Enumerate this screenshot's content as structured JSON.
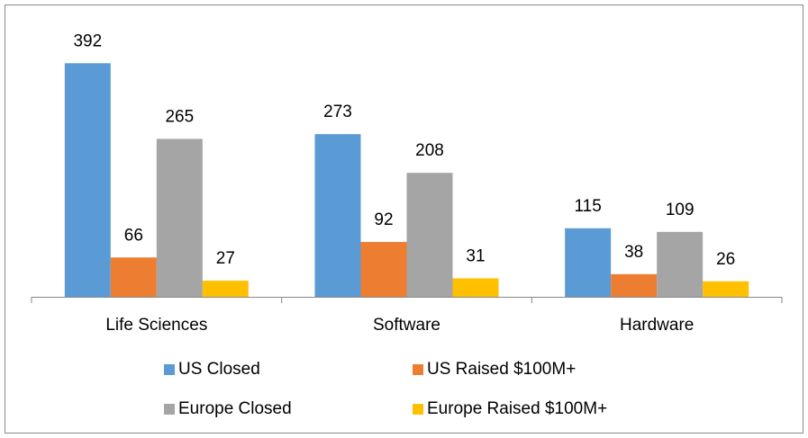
{
  "chart_data": {
    "type": "bar",
    "categories": [
      "Life Sciences",
      "Software",
      "Hardware"
    ],
    "series": [
      {
        "name": "US Closed",
        "color": "#5b9bd5",
        "values": [
          392,
          273,
          115
        ]
      },
      {
        "name": "US Raised $100M+",
        "color": "#ed7d31",
        "values": [
          66,
          92,
          38
        ]
      },
      {
        "name": "Europe Closed",
        "color": "#a5a5a5",
        "values": [
          265,
          208,
          109
        ]
      },
      {
        "name": "Europe Raised $100M+",
        "color": "#ffc000",
        "values": [
          27,
          31,
          26
        ]
      }
    ],
    "ylim": [
      0,
      400
    ],
    "legend": "bottom"
  }
}
